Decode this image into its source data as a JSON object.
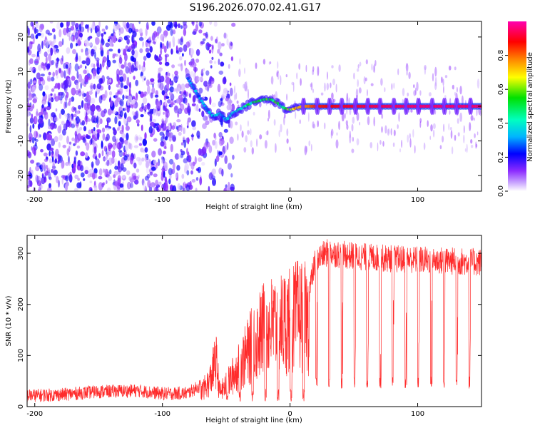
{
  "title": "S196.2026.070.02.41.G17",
  "colors": {
    "snr_line": "#ff2b2b",
    "colormap": [
      "#ffffff",
      "#8c2bff",
      "#0000ff",
      "#00c8ff",
      "#00e000",
      "#ffff00",
      "#ff8000",
      "#ff0000",
      "#ff00c0"
    ]
  },
  "chart_data": [
    {
      "type": "heatmap",
      "name": "spectrogram",
      "xlabel": "Height of straight line (km)",
      "ylabel": "Frequency (Hz)",
      "xlim": [
        -206,
        150
      ],
      "ylim": [
        -24.5,
        24.5
      ],
      "xticks": [
        -200,
        -100,
        0,
        100
      ],
      "xtick_labels": [
        "-200",
        "-100",
        "0",
        "100"
      ],
      "yticks": [
        -20,
        -10,
        0,
        10,
        20
      ],
      "ytick_labels": [
        "-20",
        "-10",
        "0",
        "10",
        "20"
      ],
      "colorbar": {
        "label": "Normalized spectral amplitude",
        "range": [
          0,
          1
        ],
        "ticks": [
          0,
          0.2,
          0.4,
          0.6,
          0.8
        ],
        "tick_labels": [
          "0.0",
          "0.2",
          "0.4",
          "0.6",
          "0.8"
        ]
      },
      "ridge": {
        "description": "dominant frequency track vs height",
        "x": [
          -80,
          -75,
          -70,
          -65,
          -60,
          -55,
          -50,
          -45,
          -40,
          -35,
          -30,
          -25,
          -20,
          -15,
          -10,
          -5,
          0,
          10,
          20,
          40,
          60,
          80,
          100,
          120,
          150
        ],
        "y": [
          8,
          5,
          2,
          -1,
          -3,
          -2,
          -4,
          -2,
          -1,
          0,
          1,
          1.5,
          2,
          2,
          1,
          -0.5,
          -1,
          0,
          0,
          0,
          0,
          0,
          0,
          0,
          0
        ],
        "amplitude": [
          0.25,
          0.3,
          0.3,
          0.35,
          0.3,
          0.35,
          0.3,
          0.35,
          0.4,
          0.45,
          0.45,
          0.5,
          0.5,
          0.55,
          0.5,
          0.5,
          0.6,
          0.75,
          0.85,
          0.9,
          0.92,
          0.94,
          0.95,
          0.95,
          0.95
        ]
      },
      "ridge_pulse_period_km": 10
    },
    {
      "type": "line",
      "name": "snr",
      "xlabel": "Height of straight line (km)",
      "ylabel": "SNR (10 * v/v)",
      "xlim": [
        -206,
        150
      ],
      "ylim": [
        0,
        335
      ],
      "xticks": [
        -200,
        -100,
        0,
        100
      ],
      "xtick_labels": [
        "-200",
        "-100",
        "0",
        "100"
      ],
      "yticks": [
        0,
        100,
        200,
        300
      ],
      "ytick_labels": [
        "0",
        "100",
        "200",
        "300"
      ],
      "series": [
        {
          "name": "SNR",
          "x": [
            -206,
            -180,
            -150,
            -120,
            -100,
            -80,
            -70,
            -63,
            -58,
            -55,
            -50,
            -40,
            -30,
            -20,
            -10,
            0,
            10,
            15,
            20,
            30,
            40,
            60,
            80,
            100,
            120,
            150
          ],
          "values": [
            20,
            22,
            28,
            30,
            24,
            25,
            40,
            70,
            130,
            40,
            60,
            110,
            170,
            220,
            230,
            240,
            260,
            230,
            290,
            305,
            300,
            295,
            292,
            290,
            288,
            285
          ],
          "dropout_period_km": 10,
          "dropout_min": 35
        }
      ]
    }
  ]
}
